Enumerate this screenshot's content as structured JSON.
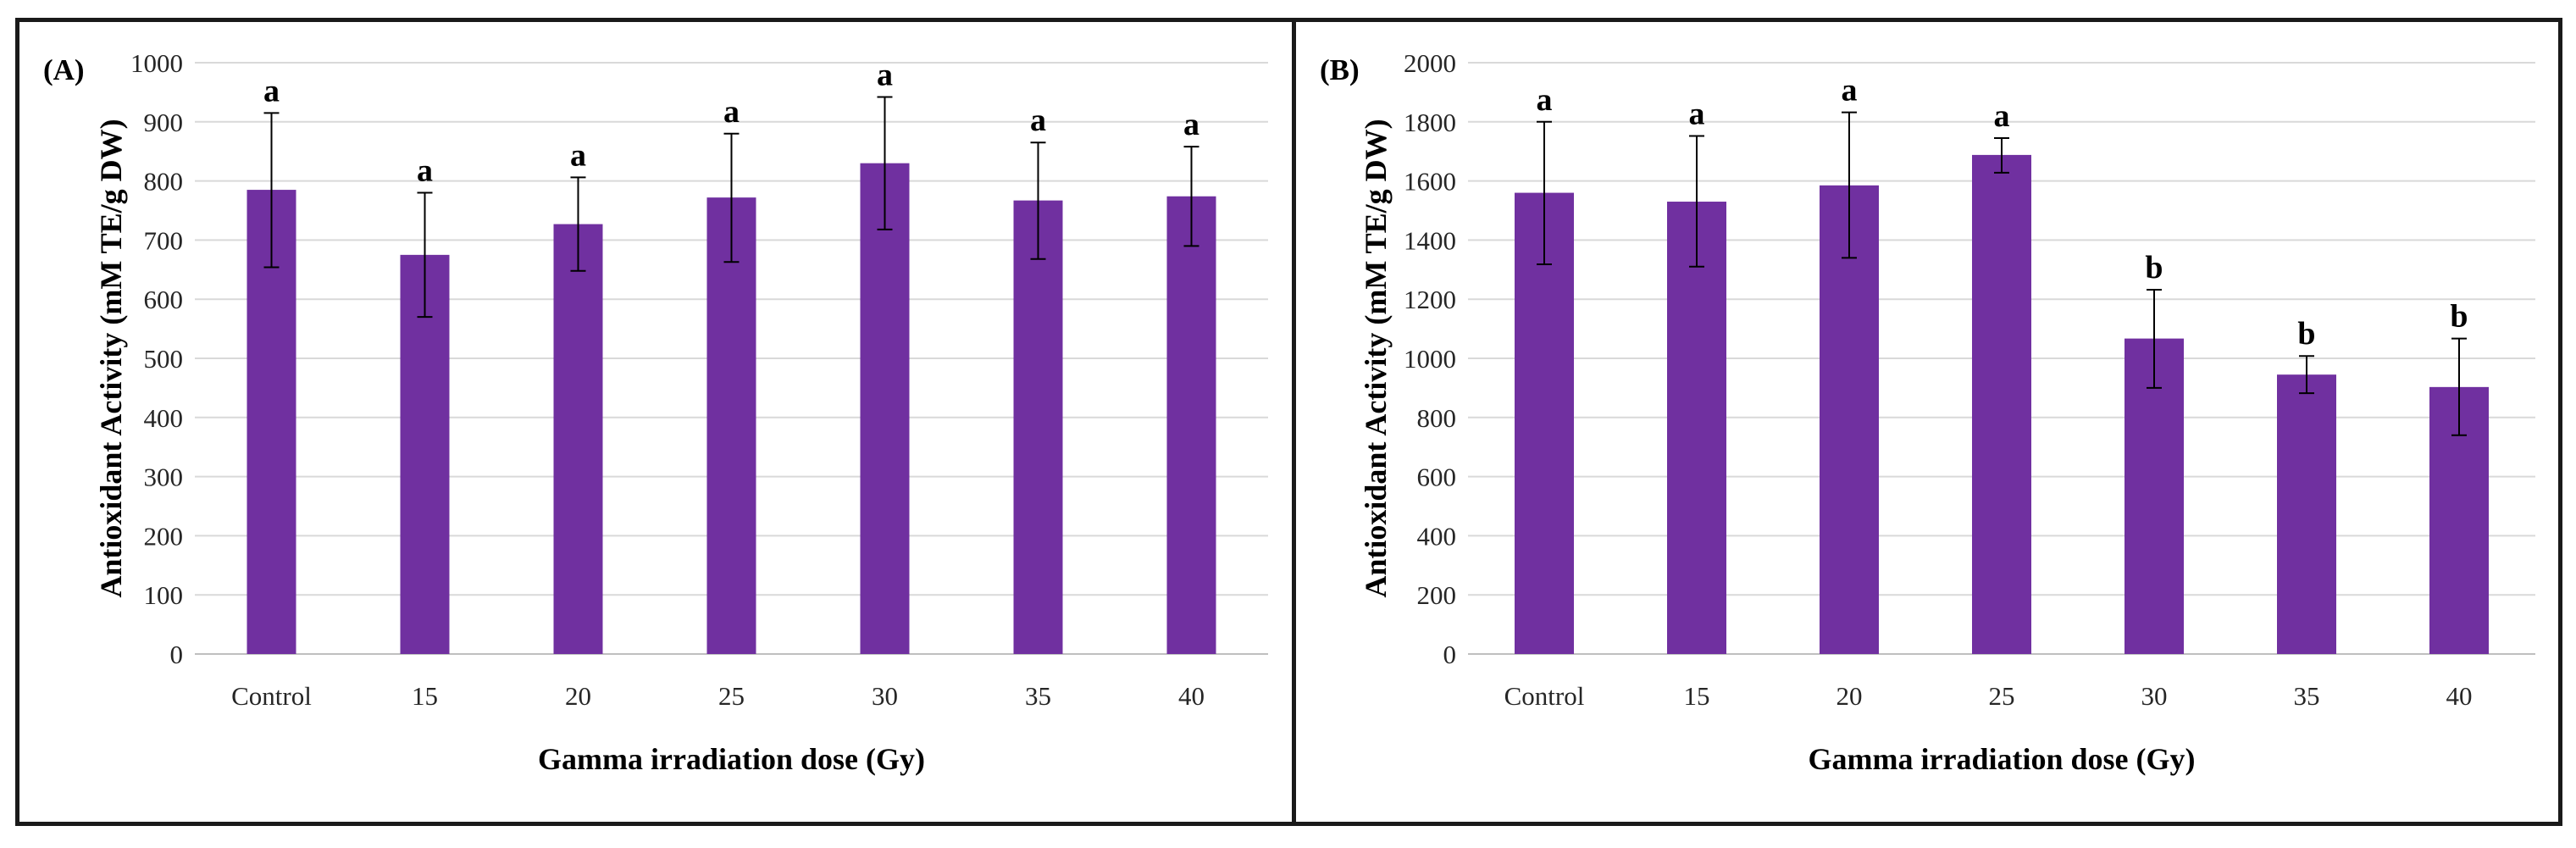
{
  "figure": {
    "panels": [
      "A",
      "B"
    ]
  },
  "chart_data": [
    {
      "type": "bar",
      "panel_label": "(A)",
      "title": "",
      "xlabel": "Gamma irradiation dose (Gy)",
      "ylabel": "Antioxidant Activity (mM TE/g DW)",
      "ylim": [
        0,
        1000
      ],
      "yticks": [
        0,
        100,
        200,
        300,
        400,
        500,
        600,
        700,
        800,
        900,
        1000
      ],
      "categories": [
        "Control",
        "15",
        "20",
        "25",
        "30",
        "35",
        "40"
      ],
      "values": [
        785,
        675,
        727,
        772,
        830,
        767,
        774
      ],
      "error_upper": [
        915,
        780,
        806,
        880,
        942,
        865,
        858
      ],
      "error_lower": [
        654,
        570,
        648,
        663,
        718,
        668,
        690
      ],
      "significance": [
        "a",
        "a",
        "a",
        "a",
        "a",
        "a",
        "a"
      ],
      "bar_color": "#7030A0",
      "grid": true
    },
    {
      "type": "bar",
      "panel_label": "(B)",
      "title": "",
      "xlabel": "Gamma irradiation dose (Gy)",
      "ylabel": "Antioxidant Activity (mM TE/g DW)",
      "ylim": [
        0,
        2000
      ],
      "yticks": [
        0,
        200,
        400,
        600,
        800,
        1000,
        1200,
        1400,
        1600,
        1800,
        2000
      ],
      "categories": [
        "Control",
        "15",
        "20",
        "25",
        "30",
        "35",
        "40"
      ],
      "values": [
        1560,
        1530,
        1585,
        1688,
        1067,
        945,
        903
      ],
      "error_upper": [
        1800,
        1752,
        1832,
        1745,
        1232,
        1008,
        1067
      ],
      "error_lower": [
        1318,
        1310,
        1340,
        1628,
        900,
        882,
        740
      ],
      "significance": [
        "a",
        "a",
        "a",
        "a",
        "b",
        "b",
        "b"
      ],
      "bar_color": "#7030A0",
      "grid": true
    }
  ]
}
